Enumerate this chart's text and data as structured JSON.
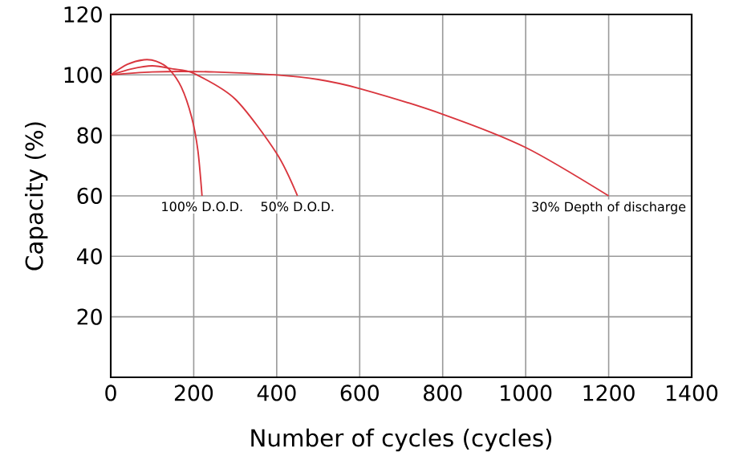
{
  "chart_data": {
    "type": "line",
    "xlabel": "Number of cycles (cycles)",
    "ylabel": "Capacity (%)",
    "series": [
      {
        "color": "#d9363e",
        "x": [
          0,
          40,
          80,
          110,
          140,
          170,
          195,
          210,
          220
        ],
        "values": [
          100,
          103.5,
          105,
          104.5,
          102,
          96,
          86,
          75,
          60
        ]
      },
      {
        "color": "#d9363e",
        "x": [
          0,
          50,
          100,
          150,
          200,
          300,
          400,
          450
        ],
        "values": [
          100,
          102,
          103,
          102,
          100.5,
          92,
          74,
          60
        ]
      },
      {
        "color": "#d9363e",
        "x": [
          0,
          100,
          250,
          400,
          500,
          600,
          800,
          1000,
          1200
        ],
        "values": [
          100,
          101,
          101,
          100,
          98.5,
          95.5,
          87,
          76,
          60
        ]
      }
    ],
    "annotations": [
      {
        "text": "100% D.O.D.",
        "x": 220,
        "y": 60
      },
      {
        "text": "50% D.O.D.",
        "x": 450,
        "y": 60
      },
      {
        "text": "30% Depth of discharge",
        "x": 1200,
        "y": 60
      }
    ],
    "xlim": [
      0,
      1400
    ],
    "xticks": [
      0,
      200,
      400,
      600,
      800,
      1000,
      1200,
      1400
    ],
    "ylim": [
      0,
      120
    ],
    "yticks": [
      {
        "value": 0,
        "label": null
      },
      20,
      40,
      60,
      80,
      100,
      120
    ],
    "grid": true
  }
}
